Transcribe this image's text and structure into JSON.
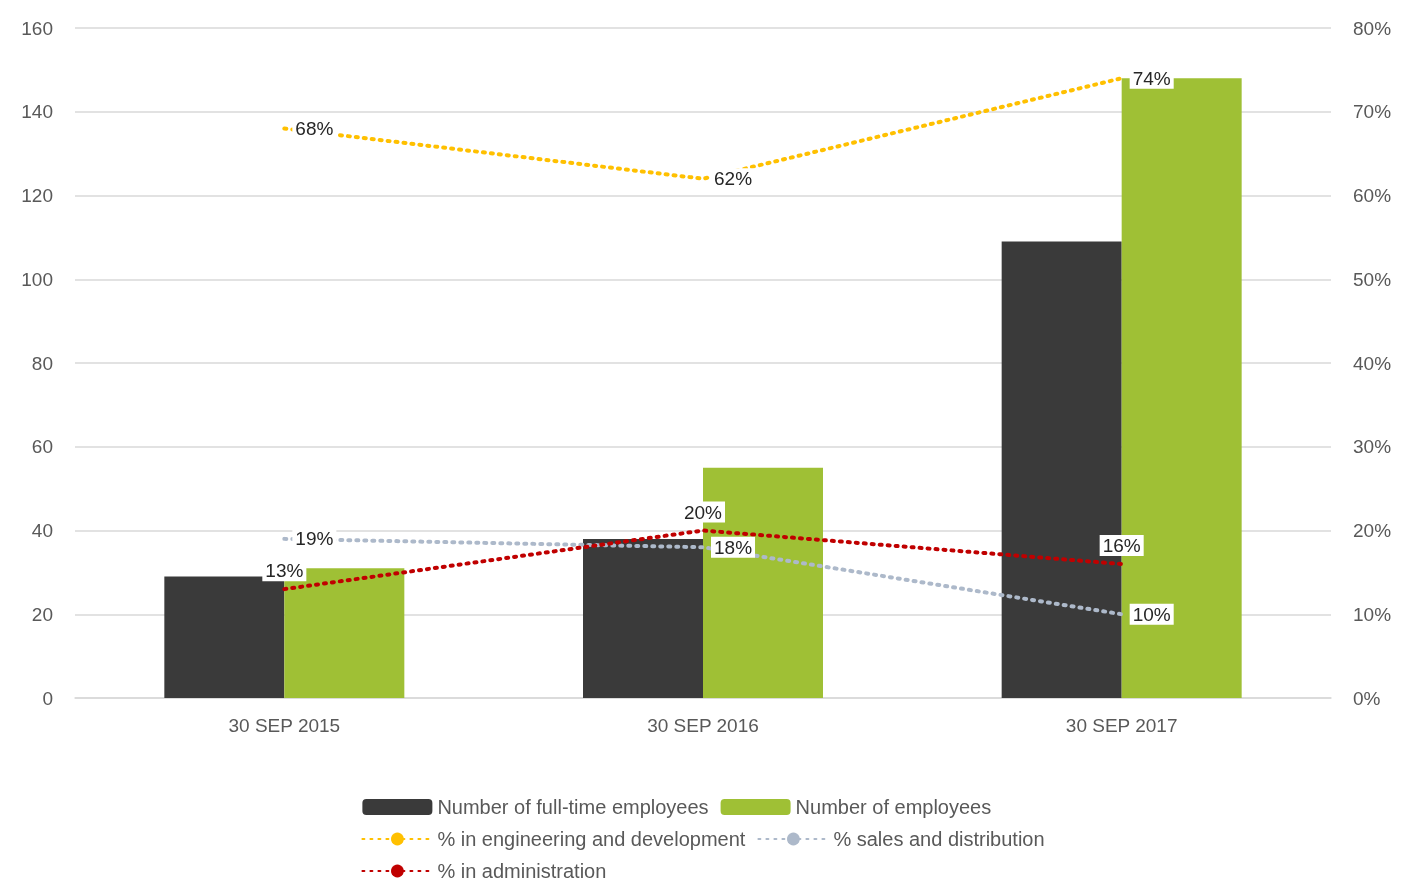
{
  "chart_data": {
    "type": "bar",
    "categories": [
      "30 SEP 2015",
      "30 SEP 2016",
      "30 SEP 2017"
    ],
    "series": [
      {
        "name": "Number of full-time employees",
        "color": "#3a3a3a",
        "values": [
          29,
          38,
          109
        ]
      },
      {
        "name": "Number of employees",
        "color": "#9fc035",
        "values": [
          31,
          55,
          148
        ]
      },
      {
        "name": "% in engineering and development",
        "type": "line",
        "axis": "y2",
        "color": "#ffc000",
        "values": [
          68,
          62,
          74
        ],
        "value_labels": [
          "68%",
          "62%",
          "74%"
        ]
      },
      {
        "name": "% sales and distribution",
        "type": "line",
        "axis": "y2",
        "color": "#adb9ca",
        "values": [
          19,
          18,
          10
        ],
        "value_labels": [
          "19%",
          "18%",
          "10%"
        ]
      },
      {
        "name": "% in administration",
        "type": "line",
        "axis": "y2",
        "color": "#c00000",
        "values": [
          13,
          20,
          16
        ],
        "value_labels": [
          "13%",
          "20%",
          "16%"
        ]
      }
    ],
    "ylim": [
      0,
      160
    ],
    "yticks": [
      0,
      20,
      40,
      60,
      80,
      100,
      120,
      140,
      160
    ],
    "y2lim": [
      0,
      80
    ],
    "y2ticks": [
      {
        "value": 0,
        "label": "0%"
      },
      {
        "value": 10,
        "label": "10%"
      },
      {
        "value": 20,
        "label": "20%"
      },
      {
        "value": 30,
        "label": "30%"
      },
      {
        "value": 40,
        "label": "40%"
      },
      {
        "value": 50,
        "label": "50%"
      },
      {
        "value": 60,
        "label": "60%"
      },
      {
        "value": 70,
        "label": "70%"
      },
      {
        "value": 80,
        "label": "80%"
      }
    ],
    "grid": "y",
    "legend": "bottom",
    "line_style": "dotted",
    "marker": "none"
  }
}
